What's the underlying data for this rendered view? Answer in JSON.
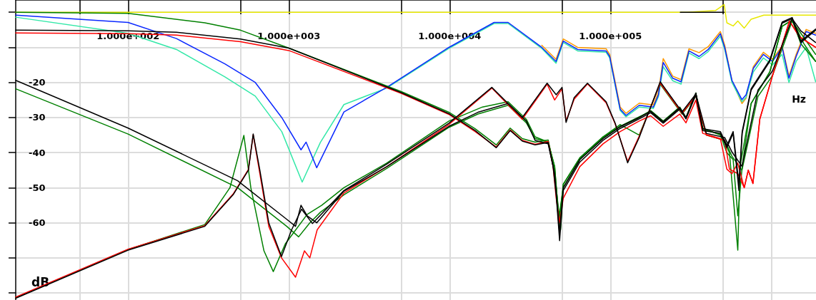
{
  "chart_data": {
    "type": "line",
    "xlabel": "Hz",
    "ylabel": "dB",
    "log": "x",
    "grid": true,
    "xlim": [
      20,
      1900000
    ],
    "ylim": [
      -82,
      3.5
    ],
    "xticks": [
      {
        "value": 50,
        "label": null
      },
      {
        "value": 100,
        "label": "1.000e+002"
      },
      {
        "value": 500,
        "label": null
      },
      {
        "value": 1000,
        "label": "1.000e+003"
      },
      {
        "value": 5000,
        "label": null
      },
      {
        "value": 10000,
        "label": "1.000e+004"
      },
      {
        "value": 50000,
        "label": null
      },
      {
        "value": 100000,
        "label": "1.000e+005"
      },
      {
        "value": 500000,
        "label": null
      },
      {
        "value": 1000000,
        "label": null
      }
    ],
    "yticks": [
      {
        "value": -80,
        "label": null
      },
      {
        "value": -70,
        "label": null
      },
      -60,
      -50,
      -40,
      -30,
      -20,
      {
        "value": -10,
        "label": null
      },
      {
        "value": 0,
        "label": null
      }
    ],
    "series": [
      {
        "color": "#e8e800",
        "x": [
          20,
          300000,
          450000,
          510000,
          530000,
          580000,
          620000,
          680000,
          750000,
          900000,
          1900000
        ],
        "values": [
          0,
          0,
          0.5,
          2.2,
          -3,
          -3.9,
          -2.5,
          -4.5,
          -2,
          -0.8,
          -0.8
        ]
      },
      {
        "color": "#000000",
        "x": [
          272000,
          510000
        ],
        "values": [
          0,
          0
        ]
      },
      {
        "color": "#ff9900",
        "x": [
          37400,
          45900,
          50900,
          62500,
          94000,
          99000,
          115000,
          125000,
          151000,
          185000,
          199000,
          213000,
          244000,
          275000,
          308000,
          356000,
          406000,
          483000,
          514000,
          570000,
          658000,
          698000,
          774000,
          894000,
          1020000,
          1170000,
          1290000,
          1430000,
          1650000,
          1890000
        ],
        "values": [
          -9.4,
          -13.4,
          -7.6,
          -10,
          -10.4,
          -12,
          -27,
          -28.8,
          -25.9,
          -26.4,
          -22.9,
          -13.2,
          -18.2,
          -19.2,
          -10.4,
          -11.5,
          -9.8,
          -5.5,
          -9.4,
          -19.5,
          -26,
          -24.5,
          -15.5,
          -11.4,
          -13.4,
          -9.6,
          -18.2,
          -12,
          -4.9,
          -6
        ]
      },
      {
        "color": "#33e8a8",
        "x": [
          20,
          100,
          200,
          400,
          618,
          903,
          1210,
          1570,
          2200,
          4060,
          9900,
          18900,
          23100,
          37400,
          45900,
          50900,
          62500,
          94000,
          99000,
          115000,
          125000,
          151000,
          185000,
          199000,
          213000,
          244000,
          275000,
          308000,
          356000,
          406000,
          483000,
          514000,
          570000,
          658000,
          698000,
          774000,
          894000,
          1020000,
          1170000,
          1290000,
          1430000,
          1650000,
          1890000
        ],
        "values": [
          -1.4,
          -6,
          -10.6,
          -18.4,
          -23.9,
          -34,
          -48.4,
          -37.1,
          -26.3,
          -21.6,
          -10.3,
          -3.2,
          -3.2,
          -10.3,
          -14.5,
          -8.6,
          -11,
          -11.4,
          -13,
          -28,
          -29.8,
          -27,
          -27.4,
          -24,
          -15.5,
          -19.5,
          -20.5,
          -11.6,
          -13.2,
          -11.2,
          -6.8,
          -10.6,
          -20,
          -25.5,
          -24.2,
          -17,
          -13,
          -15,
          -12,
          -20,
          -14,
          -10,
          -19.8
        ]
      },
      {
        "color": "#0a28ff",
        "x": [
          20,
          100,
          200,
          400,
          618,
          903,
          1190,
          1280,
          1490,
          2200,
          4060,
          9900,
          18900,
          23100,
          37400,
          45900,
          50900,
          62500,
          94000,
          99000,
          115000,
          125000,
          151000,
          185000,
          199000,
          213000,
          244000,
          275000,
          308000,
          356000,
          406000,
          483000,
          514000,
          570000,
          658000,
          698000,
          774000,
          894000,
          1020000,
          1170000,
          1290000,
          1430000,
          1650000,
          1890000
        ],
        "values": [
          -0.8,
          -2.9,
          -7.5,
          -14.7,
          -20,
          -30,
          -39.2,
          -37,
          -44.3,
          -28.4,
          -21.4,
          -10,
          -2.9,
          -2.9,
          -10,
          -14,
          -8.2,
          -10.6,
          -11,
          -12.6,
          -27.6,
          -29.4,
          -26.5,
          -27,
          -23.5,
          -14.3,
          -18.8,
          -19.8,
          -11,
          -12.6,
          -10.6,
          -6.1,
          -10,
          -19.4,
          -24.9,
          -23.5,
          -16,
          -12,
          -14,
          -10,
          -18.8,
          -12.6,
          -5.5,
          -6.5
        ]
      },
      {
        "color": "#008000",
        "x": [
          20,
          100,
          300,
          500,
          1000,
          5000,
          10000,
          14400,
          19500,
          23800,
          28300,
          34000,
          41000,
          44000,
          46000,
          48000,
          50900,
          64500,
          90000,
          115000,
          151000,
          178000,
          213000,
          270000,
          295000,
          340000,
          375000,
          483000,
          530000,
          580000,
          620000,
          660000,
          750000,
          980000,
          1170000,
          1350000,
          1530000,
          1890000
        ],
        "values": [
          0,
          -0.3,
          -3,
          -5.1,
          -10.2,
          -22.6,
          -28.6,
          -33.2,
          -37.8,
          -33,
          -36,
          -37,
          -36.4,
          -43,
          -50,
          -58,
          -50,
          -42,
          -35.8,
          -32.6,
          -30,
          -28,
          -31,
          -27,
          -30,
          -23,
          -33,
          -35,
          -40,
          -42,
          -58,
          -44,
          -26,
          -17,
          -4,
          -2.2,
          -9,
          -14
        ]
      },
      {
        "color": "#008000",
        "x": [
          20,
          100,
          300,
          430,
          525,
          580,
          700,
          800,
          950,
          1300,
          1600,
          2200,
          4060,
          9900,
          16000,
          23100,
          30000,
          34000,
          41000,
          45000,
          47500,
          49000,
          51000,
          64500,
          90000,
          115000,
          151000,
          178000,
          213000,
          270000,
          295000,
          340000,
          375000,
          483000,
          550000,
          620000,
          640000,
          750000,
          980000,
          1170000,
          1350000,
          1600000,
          1890000
        ],
        "values": [
          -81.4,
          -67.6,
          -60.5,
          -50,
          -35.1,
          -50,
          -68,
          -73.9,
          -66,
          -57.6,
          -55,
          -50,
          -43,
          -31,
          -27,
          -25.5,
          -30.5,
          -35.5,
          -37,
          -44,
          -58,
          -62,
          -49,
          -41.5,
          -35.5,
          -32.5,
          -29.8,
          -28.2,
          -31.2,
          -27.2,
          -30.2,
          -23.2,
          -33.3,
          -34.8,
          -40,
          -67.8,
          -44,
          -26,
          -17,
          -4,
          -2.2,
          -9,
          -14
        ]
      },
      {
        "color": "#008000",
        "x": [
          20,
          100,
          480,
          970,
          1150,
          1350,
          1570,
          2200,
          4060,
          9900,
          15000,
          23100,
          30000,
          34000,
          41000,
          45000,
          48000,
          50900,
          64500,
          90000,
          115000,
          151000,
          204000,
          279000,
          340000,
          395000,
          514000,
          570000,
          658000,
          827000,
          1020000,
          1350000,
          1530000,
          1890000
        ],
        "values": [
          -21.8,
          -34.7,
          -50,
          -61,
          -64,
          -60,
          -57,
          -52,
          -44.5,
          -32.8,
          -29,
          -26.5,
          -31.5,
          -36,
          -37,
          -44,
          -60,
          -49,
          -41.5,
          -35.5,
          -32,
          -35,
          -20.5,
          -29,
          -24,
          -35,
          -36.5,
          -41,
          -45,
          -24,
          -18,
          -2.5,
          -6,
          -12
        ]
      },
      {
        "color": "#ff0000",
        "x": [
          20,
          100,
          200,
          500,
          1000,
          5000,
          10000,
          14400,
          19500,
          23800,
          28300,
          34000,
          41000,
          44000,
          46000,
          48300,
          50900,
          64500,
          90000,
          115000,
          151000,
          178000,
          213000,
          270000,
          295000,
          340000,
          375000,
          483000,
          530000,
          570000,
          620000,
          680000,
          720000,
          770000,
          850000,
          1020000,
          1300000,
          1500000,
          1890000
        ],
        "values": [
          -5.9,
          -6.1,
          -6.5,
          -8.4,
          -10.9,
          -23.1,
          -29.2,
          -34,
          -38.4,
          -33.5,
          -36.5,
          -37.6,
          -36.8,
          -44,
          -53,
          -60,
          -53,
          -44,
          -37.5,
          -34,
          -31,
          -29.5,
          -32.5,
          -29,
          -31.5,
          -25,
          -34.5,
          -36,
          -44.7,
          -46,
          -43,
          -50,
          -45,
          -48.8,
          -30.4,
          -18,
          -2.5,
          -7,
          -10
        ]
      },
      {
        "color": "#ff0000",
        "x": [
          20,
          100,
          300,
          450,
          560,
          600,
          660,
          750,
          900,
          1100,
          1250,
          1350,
          1500,
          2200,
          4060,
          9900,
          18300,
          28300,
          40400,
          45000,
          50000,
          53000,
          59500,
          72000,
          94000,
          107000,
          128000,
          151000,
          204000,
          279000,
          340000,
          395000,
          514000,
          550000,
          620000,
          680000,
          720000,
          770000,
          850000,
          1020000,
          1300000,
          1500000,
          1890000
        ],
        "values": [
          -81.2,
          -67.5,
          -60.8,
          -51.8,
          -44.8,
          -34.9,
          -46,
          -61,
          -70,
          -75.5,
          -68,
          -70,
          -62,
          -51.5,
          -44,
          -32,
          -21.6,
          -30.5,
          -20.5,
          -25,
          -21.8,
          -31,
          -24.8,
          -20.4,
          -25.8,
          -31.8,
          -42.5,
          -35.3,
          -20.2,
          -28.8,
          -23.8,
          -35,
          -36.5,
          -44.7,
          -46,
          -50,
          -45,
          -48.8,
          -30.4,
          -18,
          -2.5,
          -7,
          -10
        ]
      },
      {
        "color": "#000000",
        "x": [
          20,
          100,
          200,
          500,
          1000,
          5000,
          10000,
          14400,
          19500,
          23800,
          28300,
          34000,
          41000,
          44000,
          46000,
          48300,
          50900,
          64500,
          90000,
          115000,
          151000,
          178000,
          213000,
          270000,
          295000,
          340000,
          375000,
          483000,
          530000,
          580000,
          630000,
          660000,
          750000,
          980000,
          1170000,
          1350000,
          1530000,
          1890000
        ],
        "values": [
          -5.1,
          -5.3,
          -5.7,
          -7.6,
          -10.2,
          -22.9,
          -29,
          -33.7,
          -38.6,
          -33.7,
          -36.7,
          -37.8,
          -37.1,
          -43.9,
          -52,
          -65.1,
          -50.8,
          -42.7,
          -36.5,
          -33.1,
          -30.4,
          -28.6,
          -31.6,
          -27.6,
          -30.4,
          -23.5,
          -33.7,
          -34.5,
          -38.6,
          -34.5,
          -50.8,
          -34.5,
          -22.2,
          -14,
          -3.1,
          -1.8,
          -8.6,
          -5.1
        ]
      },
      {
        "color": "#000000",
        "x": [
          20,
          100,
          300,
          450,
          560,
          600,
          660,
          750,
          900,
          1040,
          1200,
          1400,
          2200,
          4060,
          9900,
          18300,
          28300,
          40400,
          46000,
          50000,
          53000,
          59500,
          72000,
          94000,
          107000,
          128000,
          151000,
          204000,
          279000,
          340000,
          395000,
          514000,
          570000,
          658000,
          827000,
          1020000,
          1350000,
          1530000,
          1890000
        ],
        "values": [
          -81.5,
          -67.8,
          -61,
          -52,
          -45,
          -34.7,
          -45,
          -60,
          -69.6,
          -62,
          -56.1,
          -60.2,
          -50.8,
          -43.3,
          -31.6,
          -21.4,
          -30,
          -20.2,
          -23.5,
          -21.4,
          -31.4,
          -24.3,
          -20.2,
          -25.5,
          -31.6,
          -42.9,
          -35.7,
          -19.8,
          -28.4,
          -23.3,
          -34.5,
          -35.7,
          -39.8,
          -43.9,
          -22.2,
          -16.7,
          -1.8,
          -5.3,
          -8.6
        ]
      },
      {
        "color": "#000000",
        "x": [
          20,
          100,
          480,
          970,
          1100,
          1190,
          1300,
          1490,
          2200,
          4060,
          9900,
          15000,
          23100,
          30000,
          34000,
          41000,
          45000,
          48300,
          50900,
          64500,
          90000,
          115000,
          151000,
          178000,
          213000,
          270000,
          295000,
          340000,
          375000,
          483000,
          530000,
          580000,
          630000,
          660000,
          750000,
          980000,
          1170000,
          1350000,
          1530000,
          1890000
        ],
        "values": [
          -19.4,
          -33,
          -48,
          -59,
          -61,
          -55,
          -58,
          -60,
          -51,
          -44,
          -32.5,
          -28.5,
          -26,
          -31,
          -36.5,
          -37.5,
          -46,
          -63,
          -50,
          -42,
          -36,
          -32.6,
          -30,
          -28.2,
          -31.2,
          -27.2,
          -30,
          -23,
          -33.2,
          -34,
          -38,
          -34,
          -49,
          -34,
          -21.8,
          -13.6,
          -2.8,
          -1.5,
          -8.2,
          -4.8
        ]
      }
    ]
  }
}
